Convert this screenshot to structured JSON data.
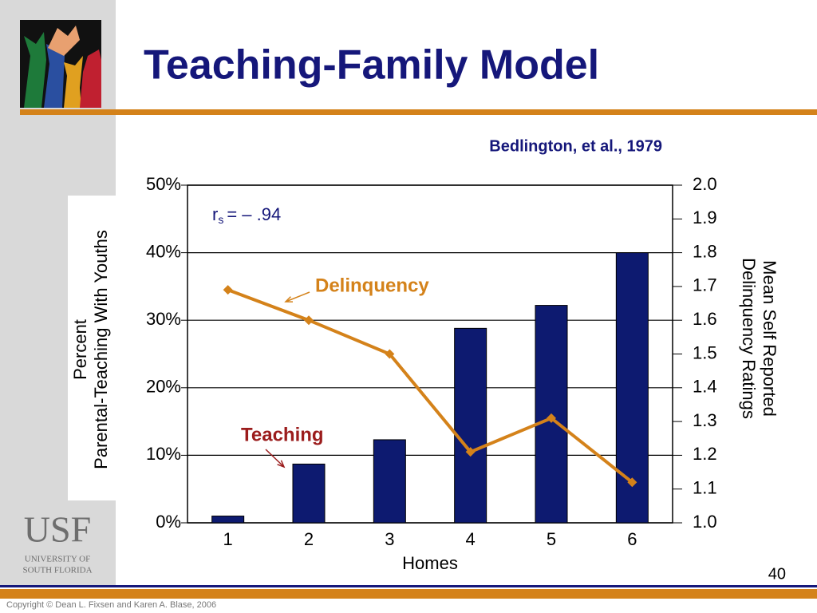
{
  "slide": {
    "title": "Teaching-Family Model",
    "page_number": "40",
    "copyright": "Copyright © Dean L. Fixsen and Karen A. Blase, 2006",
    "logo": {
      "mark": "USF",
      "line1": "UNIVERSITY OF",
      "line2": "SOUTH FLORIDA"
    }
  },
  "chart_data": {
    "type": "bar",
    "subtitle": "Bedlington, et al., 1979",
    "annotation": [
      "r",
      "s",
      "= – .94"
    ],
    "categories": [
      "1",
      "2",
      "3",
      "4",
      "5",
      "6"
    ],
    "xlabel": "Homes",
    "ylabel": [
      "Percent",
      "Parental-Teaching With Youths"
    ],
    "y2label": [
      "Mean Self Reported",
      "Delinquency Ratings"
    ],
    "ylim": [
      0,
      50
    ],
    "yticks": [
      {
        "value": 0,
        "label": "0%"
      },
      {
        "value": 10,
        "label": "10%"
      },
      {
        "value": 20,
        "label": "20%"
      },
      {
        "value": 30,
        "label": "30%"
      },
      {
        "value": 40,
        "label": "40%"
      },
      {
        "value": 50,
        "label": "50%"
      }
    ],
    "y2lim": [
      1.0,
      2.0
    ],
    "y2ticks": [
      {
        "value": 1,
        "label": "1.0"
      },
      1.1,
      1.2,
      1.3,
      1.4,
      1.5,
      1.6,
      1.7,
      1.8,
      1.9,
      {
        "value": 2,
        "label": "2.0"
      }
    ],
    "grid": true,
    "series": [
      {
        "name": "Teaching",
        "type": "bar",
        "color": "#0d1a70",
        "label_color": "#9b1c1c",
        "values": [
          1,
          8.7,
          12.3,
          28.8,
          32.2,
          40
        ]
      },
      {
        "name": "Delinquency",
        "type": "line",
        "axis": "y2",
        "color": "#d4821a",
        "label_color": "#d4821a",
        "values": [
          1.69,
          1.6,
          1.5,
          1.21,
          1.31,
          1.12
        ]
      }
    ]
  }
}
